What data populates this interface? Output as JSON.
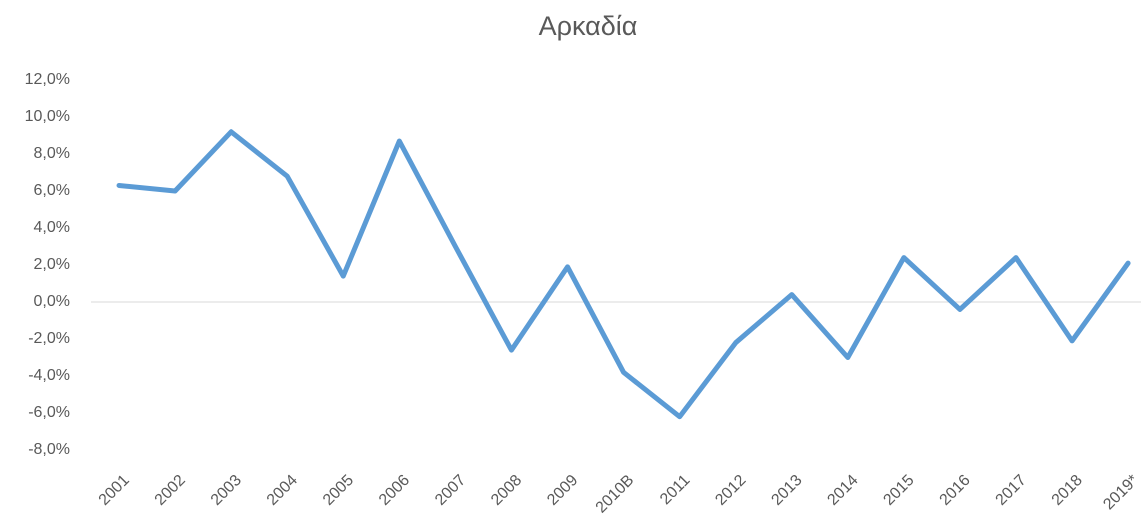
{
  "chart_data": {
    "type": "line",
    "title": "Αρκαδία",
    "categories": [
      "2001",
      "2002",
      "2003",
      "2004",
      "2005",
      "2006",
      "2007",
      "2008",
      "2009",
      "2010B",
      "2011",
      "2012",
      "2013",
      "2014",
      "2015",
      "2016",
      "2017",
      "2018",
      "2019*"
    ],
    "series": [
      {
        "name": "Αρκαδία",
        "color": "#5b9bd5",
        "values": [
          6.3,
          6.0,
          9.2,
          6.8,
          1.4,
          8.7,
          3.0,
          -2.6,
          1.9,
          -3.8,
          -6.2,
          -2.2,
          0.4,
          -3.0,
          2.4,
          -0.4,
          2.4,
          -2.1,
          2.1
        ]
      }
    ],
    "ylim": [
      -8,
      12
    ],
    "yticks": [
      {
        "value": 12,
        "label": "12,0%"
      },
      {
        "value": 10,
        "label": "10,0%"
      },
      {
        "value": 8,
        "label": "8,0%"
      },
      {
        "value": 6,
        "label": "6,0%"
      },
      {
        "value": 4,
        "label": "4,0%"
      },
      {
        "value": 2,
        "label": "2,0%"
      },
      {
        "value": 0,
        "label": "0,0%"
      },
      {
        "value": -2,
        "label": "-2,0%"
      },
      {
        "value": -4,
        "label": "-4,0%"
      },
      {
        "value": -6,
        "label": "-6,0%"
      },
      {
        "value": -8,
        "label": "-8,0%"
      }
    ],
    "grid": false
  }
}
